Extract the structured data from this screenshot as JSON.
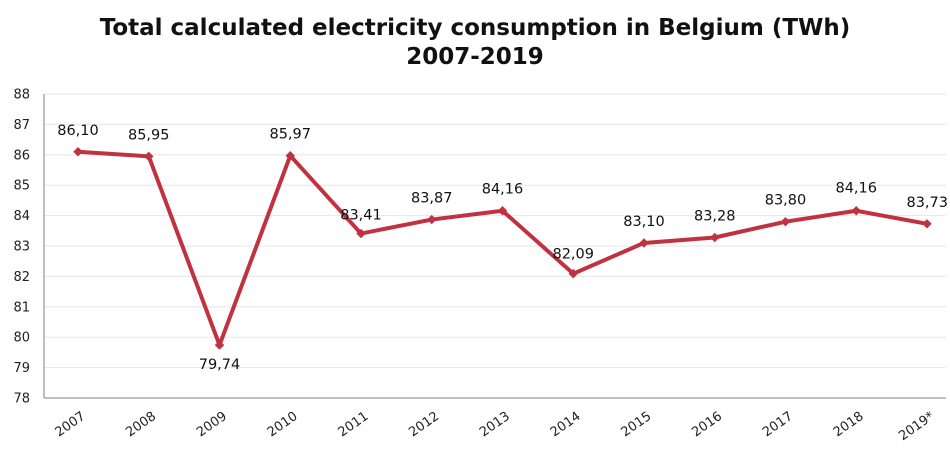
{
  "chart_data": {
    "type": "line",
    "title": "Total calculated electricity consumption in Belgium (TWh)",
    "subtitle": "2007-2019",
    "categories": [
      "2007",
      "2008",
      "2009",
      "2010",
      "2011",
      "2012",
      "2013",
      "2014",
      "2015",
      "2016",
      "2017",
      "2018",
      "2019*"
    ],
    "series": [
      {
        "values": [
          86.1,
          85.95,
          79.74,
          85.97,
          83.41,
          83.87,
          84.16,
          82.09,
          83.1,
          83.28,
          83.8,
          84.16,
          83.73
        ],
        "data_labels": [
          "86,10",
          "85,95",
          "79,74",
          "85,97",
          "83,41",
          "83,87",
          "84,16",
          "82,09",
          "83,10",
          "83,28",
          "83,80",
          "84,16",
          "83,73"
        ],
        "color": "#c0323f"
      }
    ],
    "y_ticks": [
      "78",
      "79",
      "80",
      "81",
      "82",
      "83",
      "84",
      "85",
      "86",
      "87",
      "88"
    ],
    "ylim": [
      78,
      88
    ],
    "xlabel": "",
    "ylabel": "",
    "grid": true,
    "legend": "none",
    "gridline_color": "#e6e6e6",
    "axis_color": "#7f7f7f"
  }
}
